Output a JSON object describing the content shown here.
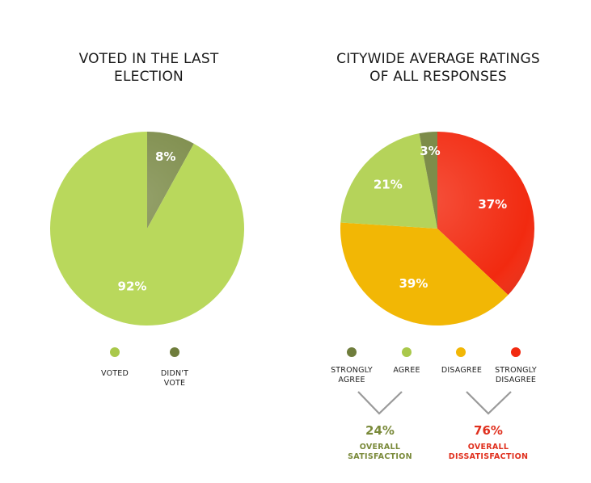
{
  "chart_data": [
    {
      "type": "pie",
      "title": "VOTED IN THE LAST ELECTION",
      "slices": [
        {
          "label": "DIDN'T VOTE",
          "value": 8,
          "display": "8%",
          "color": "#7d8c4a"
        },
        {
          "label": "VOTED",
          "value": 92,
          "display": "92%",
          "color": "#b9d85c"
        }
      ],
      "legend": [
        {
          "label": "VOTED",
          "color": "#a9c84a"
        },
        {
          "label": "DIDN'T VOTE",
          "color": "#6f7d3c"
        }
      ]
    },
    {
      "type": "pie",
      "title": "CITYWIDE AVERAGE RATINGS OF ALL RESPONSES",
      "slices": [
        {
          "label": "STRONGLY DISAGREE",
          "value": 37,
          "display": "37%",
          "color": "#f22a10"
        },
        {
          "label": "DISAGREE",
          "value": 39,
          "display": "39%",
          "color": "#f2b705"
        },
        {
          "label": "AGREE",
          "value": 21,
          "display": "21%",
          "color": "#b5d35a"
        },
        {
          "label": "STRONGLY AGREE",
          "value": 3,
          "display": "3%",
          "color": "#7d8c4a"
        }
      ],
      "legend": [
        {
          "label": "STRONGLY AGREE",
          "color": "#6f7d3c"
        },
        {
          "label": "AGREE",
          "color": "#a9c84a"
        },
        {
          "label": "DISAGREE",
          "color": "#f2b705"
        },
        {
          "label": "STRONGLY DISAGREE",
          "color": "#f22a10"
        }
      ],
      "summary": [
        {
          "value": "24%",
          "label": "OVERALL SATISFACTION",
          "color": "#7a8a3a"
        },
        {
          "value": "76%",
          "label": "OVERALL DISSATISFACTION",
          "color": "#e0301e"
        }
      ]
    }
  ],
  "titles": {
    "left_line1": "VOTED IN THE LAST",
    "left_line2": "ELECTION",
    "right_line1": "CITYWIDE AVERAGE RATINGS",
    "right_line2": "OF ALL RESPONSES"
  },
  "legend_text": {
    "voted": "VOTED",
    "didnt_vote_1": "DIDN'T",
    "didnt_vote_2": "VOTE",
    "strongly_agree_1": "STRONGLY",
    "strongly_agree_2": "AGREE",
    "agree": "AGREE",
    "disagree": "DISAGREE",
    "strongly_disagree_1": "STRONGLY",
    "strongly_disagree_2": "DISAGREE"
  },
  "summary_text": {
    "sat_pct": "24%",
    "sat_1": "OVERALL",
    "sat_2": "SATISFACTION",
    "dis_pct": "76%",
    "dis_1": "OVERALL",
    "dis_2": "DISSATISFACTION"
  },
  "colors": {
    "olive_dark": "#6f7d3c",
    "lime": "#a9c84a",
    "amber": "#f2b705",
    "red": "#f22a10",
    "chevron": "#9a9a9a"
  }
}
